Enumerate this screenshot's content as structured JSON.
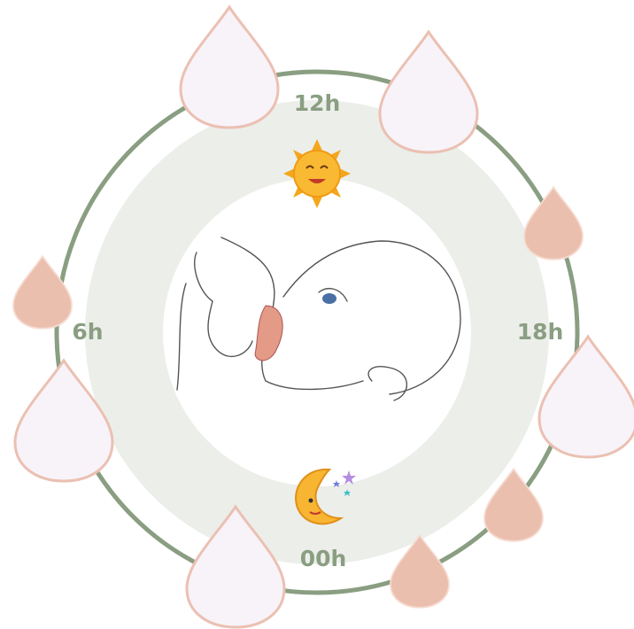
{
  "hour_labels": {
    "top": "12h",
    "left": "6h",
    "right": "18h",
    "bottom": "00h"
  }
}
